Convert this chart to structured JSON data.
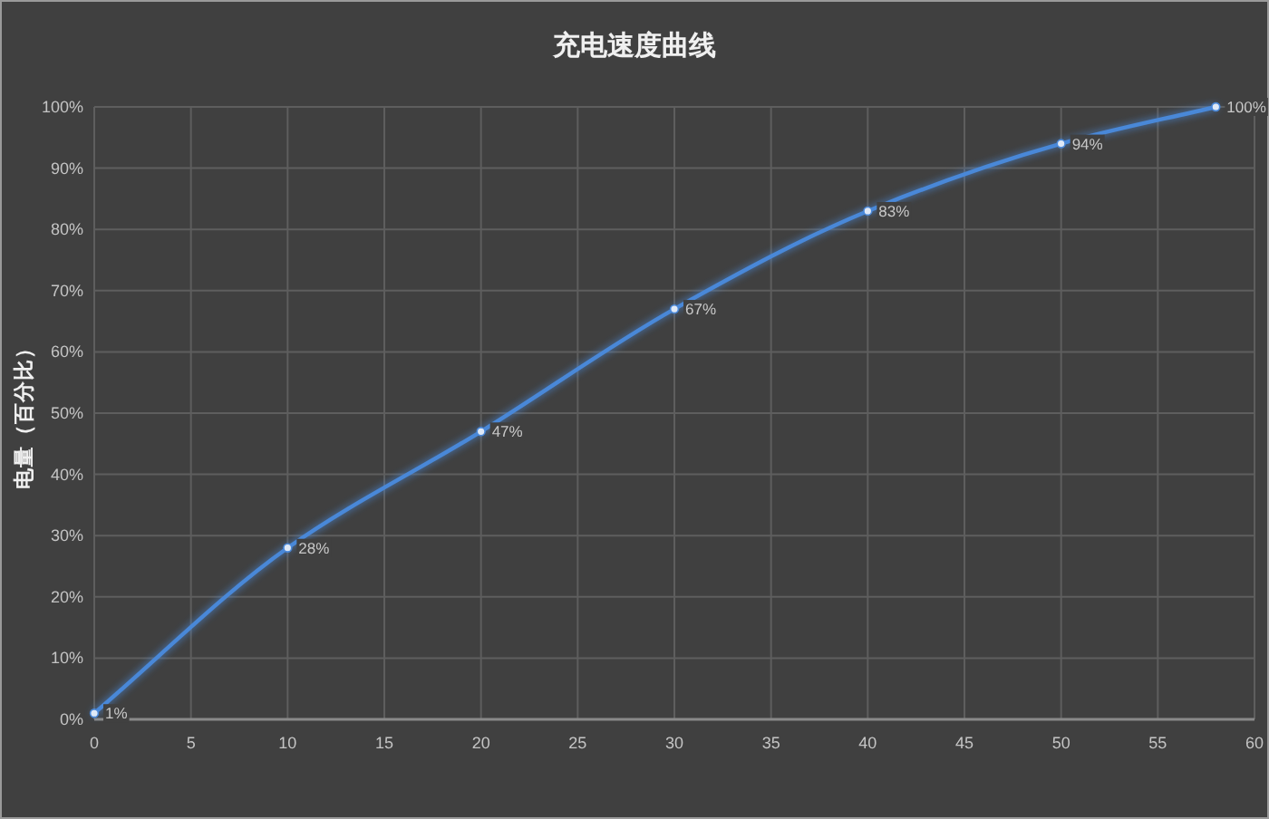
{
  "chart_data": {
    "type": "line",
    "title": "充电速度曲线",
    "ylabel": "电量（百分比）",
    "x": [
      0,
      10,
      20,
      30,
      40,
      50,
      58
    ],
    "series": [
      {
        "color": "#4a88d8",
        "values": [
          1,
          28,
          47,
          67,
          83,
          94,
          100
        ],
        "value_labels": [
          "1%",
          "28%",
          "47%",
          "67%",
          "83%",
          "94%",
          "100%"
        ]
      }
    ],
    "xlim": [
      0,
      60
    ],
    "xticks": [
      0,
      5,
      10,
      15,
      20,
      25,
      30,
      35,
      40,
      45,
      50,
      55,
      60
    ],
    "ylim": [
      0,
      100
    ],
    "yticks": [
      {
        "value": 0,
        "label": "0%"
      },
      {
        "value": 10,
        "label": "10%"
      },
      {
        "value": 20,
        "label": "20%"
      },
      {
        "value": 30,
        "label": "30%"
      },
      {
        "value": 40,
        "label": "40%"
      },
      {
        "value": 50,
        "label": "50%"
      },
      {
        "value": 60,
        "label": "60%"
      },
      {
        "value": 70,
        "label": "70%"
      },
      {
        "value": 80,
        "label": "80%"
      },
      {
        "value": 90,
        "label": "90%"
      },
      {
        "value": 100,
        "label": "100%"
      }
    ],
    "grid": true,
    "marker": "circle",
    "line_style": "solid"
  }
}
